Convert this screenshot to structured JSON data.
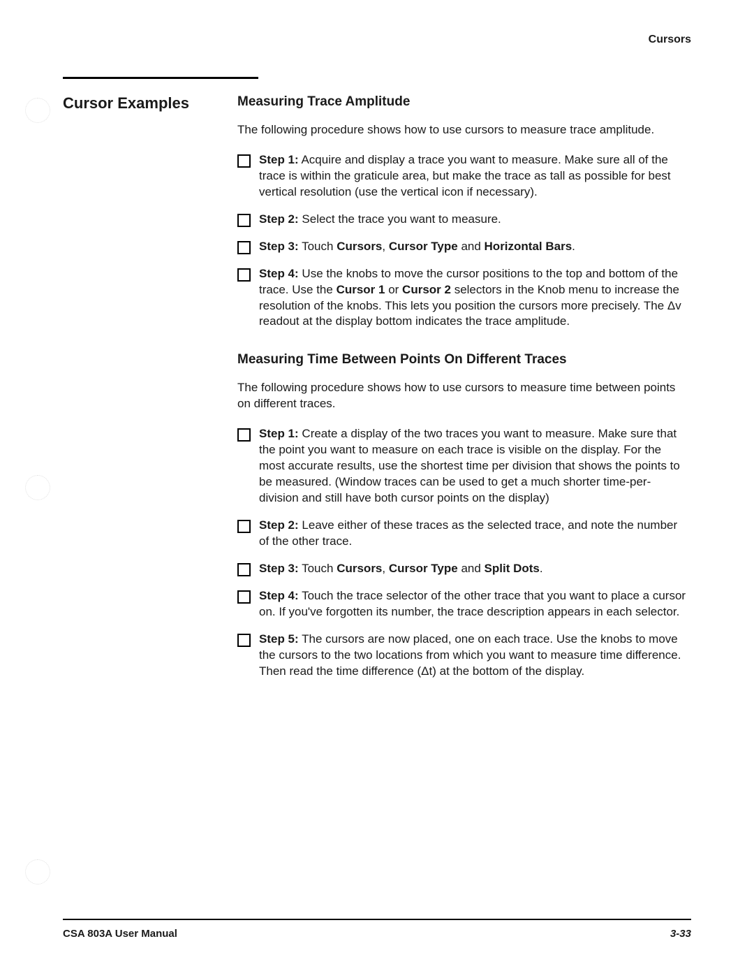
{
  "header": {
    "right": "Cursors"
  },
  "section_title": "Cursor Examples",
  "sections": [
    {
      "heading": "Measuring Trace Amplitude",
      "intro": "The following procedure shows how to use cursors to measure trace amplitude.",
      "steps": [
        {
          "label": "Step 1:",
          "segments": [
            {
              "t": "  Acquire and display a trace you want to measure. Make sure all of the trace is within the graticule area, but make the trace as tall as possible for best vertical resolution (use the vertical icon if necessary)."
            }
          ]
        },
        {
          "label": "Step 2:",
          "segments": [
            {
              "t": "  Select the trace you want to measure."
            }
          ]
        },
        {
          "label": "Step 3:",
          "segments": [
            {
              "t": "  Touch "
            },
            {
              "t": "Cursors",
              "b": true
            },
            {
              "t": ", "
            },
            {
              "t": "Cursor Type",
              "b": true
            },
            {
              "t": " and "
            },
            {
              "t": "Horizontal Bars",
              "b": true
            },
            {
              "t": "."
            }
          ]
        },
        {
          "label": "Step 4:",
          "segments": [
            {
              "t": "  Use the knobs to move the cursor positions to the top and bottom of the trace. Use the "
            },
            {
              "t": "Cursor 1",
              "b": true
            },
            {
              "t": " or "
            },
            {
              "t": "Cursor 2",
              "b": true
            },
            {
              "t": " selectors in the Knob menu to increase the resolution of the knobs. This lets you position the cursors more precisely. The Δv readout at the display bottom indicates the trace amplitude."
            }
          ]
        }
      ]
    },
    {
      "heading": "Measuring Time Between Points On Different Traces",
      "intro": "The following procedure shows how to use cursors to measure time between points on different traces.",
      "steps": [
        {
          "label": "Step 1:",
          "segments": [
            {
              "t": "  Create a display of the two traces you want to measure. Make sure that the point you want to measure on each trace is visible on the display. For the most accurate results, use the shortest time per division that shows the points to be measured. (Window traces can be used to get a much shorter time-per-division and still have both cursor points on the display)"
            }
          ]
        },
        {
          "label": "Step 2:",
          "segments": [
            {
              "t": "  Leave either of these traces as the selected trace, and note the number of the other trace."
            }
          ]
        },
        {
          "label": "Step 3:",
          "segments": [
            {
              "t": "  Touch "
            },
            {
              "t": "Cursors",
              "b": true
            },
            {
              "t": ", "
            },
            {
              "t": "Cursor Type",
              "b": true
            },
            {
              "t": " and "
            },
            {
              "t": "Split Dots",
              "b": true
            },
            {
              "t": "."
            }
          ]
        },
        {
          "label": "Step 4:",
          "segments": [
            {
              "t": "  Touch the trace selector of the other trace that you want to place a cursor on. If you've forgotten its number, the trace description appears in each selector."
            }
          ]
        },
        {
          "label": "Step 5:",
          "segments": [
            {
              "t": "  The cursors are now placed, one on each trace. Use the knobs to move the cursors to the two locations from which you want to measure time difference. Then read the time difference (Δt) at the bottom of the display."
            }
          ]
        }
      ]
    }
  ],
  "footer": {
    "left": "CSA 803A User Manual",
    "right": "3-33"
  }
}
